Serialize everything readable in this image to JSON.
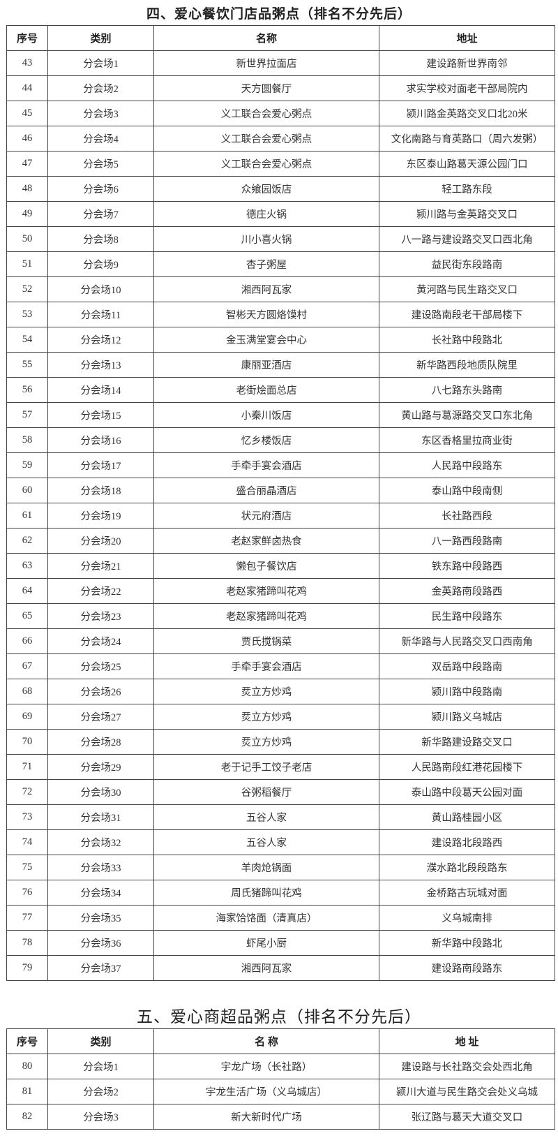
{
  "section4": {
    "title": "四、爱心餐饮门店品粥点（排名不分先后）",
    "headers": [
      "序号",
      "类别",
      "名称",
      "地址"
    ],
    "rows": [
      [
        "43",
        "分会场1",
        "新世界拉面店",
        "建设路新世界南邻"
      ],
      [
        "44",
        "分会场2",
        "天方圆餐厅",
        "求实学校对面老干部局院内"
      ],
      [
        "45",
        "分会场3",
        "义工联合会爱心粥点",
        "颍川路金英路交叉口北20米"
      ],
      [
        "46",
        "分会场4",
        "义工联合会爱心粥点",
        "文化南路与育英路口（周六发粥）"
      ],
      [
        "47",
        "分会场5",
        "义工联合会爱心粥点",
        "东区泰山路葛天源公园门口"
      ],
      [
        "48",
        "分会场6",
        "众飨园饭店",
        "轻工路东段"
      ],
      [
        "49",
        "分会场7",
        "德庄火锅",
        "颍川路与金英路交叉口"
      ],
      [
        "50",
        "分会场8",
        "川小喜火锅",
        "八一路与建设路交叉口西北角"
      ],
      [
        "51",
        "分会场9",
        "杏子粥屋",
        "益民街东段路南"
      ],
      [
        "52",
        "分会场10",
        "湘西阿瓦家",
        "黄河路与民生路交叉口"
      ],
      [
        "53",
        "分会场11",
        "智彬天方圆烙馍村",
        "建设路南段老干部局楼下"
      ],
      [
        "54",
        "分会场12",
        "金玉满堂宴会中心",
        "长社路中段路北"
      ],
      [
        "55",
        "分会场13",
        "康丽亚酒店",
        "新华路西段地质队院里"
      ],
      [
        "56",
        "分会场14",
        "老街烩面总店",
        "八七路东头路南"
      ],
      [
        "57",
        "分会场15",
        "小秦川饭店",
        "黄山路与葛源路交叉口东北角"
      ],
      [
        "58",
        "分会场16",
        "忆乡楼饭店",
        "东区香格里拉商业街"
      ],
      [
        "59",
        "分会场17",
        "手牵手宴会酒店",
        "人民路中段路东"
      ],
      [
        "60",
        "分会场18",
        "盛合丽晶酒店",
        "泰山路中段南侧"
      ],
      [
        "61",
        "分会场19",
        "状元府酒店",
        "长社路西段"
      ],
      [
        "62",
        "分会场20",
        "老赵家鲜卤热食",
        "八一路西段路南"
      ],
      [
        "63",
        "分会场21",
        "懒包子餐饮店",
        "铁东路中段路西"
      ],
      [
        "64",
        "分会场22",
        "老赵家猪蹄叫花鸡",
        "金英路南段路西"
      ],
      [
        "65",
        "分会场23",
        "老赵家猪蹄叫花鸡",
        "民生路中段路东"
      ],
      [
        "66",
        "分会场24",
        "贾氏搅锅菜",
        "新华路与人民路交叉口西南角"
      ],
      [
        "67",
        "分会场25",
        "手牵手宴会酒店",
        "双岳路中段路南"
      ],
      [
        "68",
        "分会场26",
        "烎立方炒鸡",
        "颍川路中段路南"
      ],
      [
        "69",
        "分会场27",
        "烎立方炒鸡",
        "颍川路义乌城店"
      ],
      [
        "70",
        "分会场28",
        "烎立方炒鸡",
        "新华路建设路交叉口"
      ],
      [
        "71",
        "分会场29",
        "老于记手工饺子老店",
        "人民路南段红港花园楼下"
      ],
      [
        "72",
        "分会场30",
        "谷粥稻餐厅",
        "泰山路中段葛天公园对面"
      ],
      [
        "73",
        "分会场31",
        "五谷人家",
        "黄山路桂园小区"
      ],
      [
        "74",
        "分会场32",
        "五谷人家",
        "建设路北段路西"
      ],
      [
        "75",
        "分会场33",
        "羊肉炝锅面",
        "濮水路北段段路东"
      ],
      [
        "76",
        "分会场34",
        "周氏猪蹄叫花鸡",
        "金桥路古玩城对面"
      ],
      [
        "77",
        "分会场35",
        "海家饸饹面（清真店）",
        "义乌城南排"
      ],
      [
        "78",
        "分会场36",
        "虾尾小厨",
        "新华路中段路北"
      ],
      [
        "79",
        "分会场37",
        "湘西阿瓦家",
        "建设路南段路东"
      ]
    ]
  },
  "section5": {
    "title": "五、爱心商超品粥点（排名不分先后）",
    "headers": [
      "序号",
      "类别",
      "名 称",
      "地 址"
    ],
    "rows": [
      [
        "80",
        "分会场1",
        "宇龙广场（长社路）",
        "建设路与长社路交会处西北角"
      ],
      [
        "81",
        "分会场2",
        "宇龙生活广场（义乌城店）",
        "颍川大道与民生路交会处义乌城"
      ],
      [
        "82",
        "分会场3",
        "新大新时代广场",
        "张辽路与葛天大道交叉口"
      ]
    ]
  }
}
